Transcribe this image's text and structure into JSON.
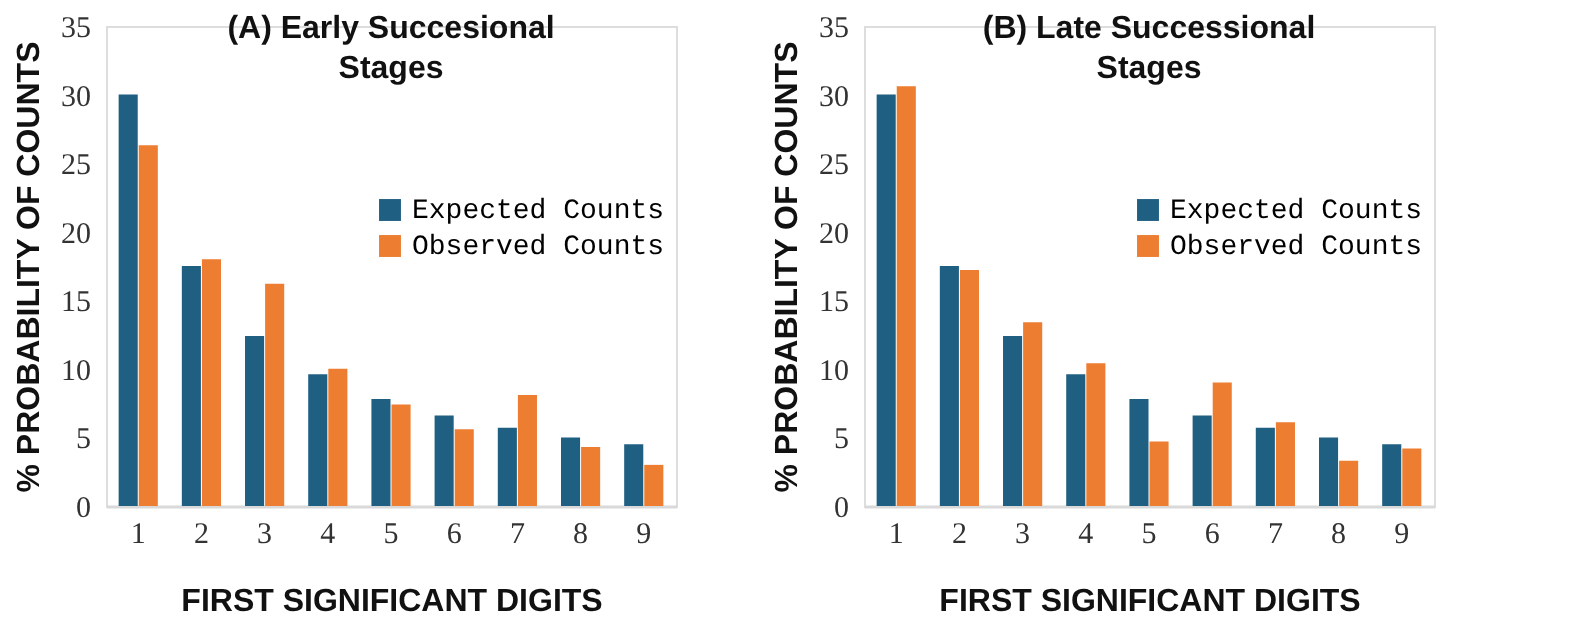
{
  "chart_data": [
    {
      "type": "bar",
      "title": "(A) Early Succesional Stages",
      "xlabel": "FIRST SIGNIFICANT DIGITS",
      "ylabel": "% PROBABILITY OF COUNTS",
      "categories": [
        "1",
        "2",
        "3",
        "4",
        "5",
        "6",
        "7",
        "8",
        "9"
      ],
      "series": [
        {
          "name": "Expected Counts",
          "color": "#1f5f82",
          "values": [
            30.0,
            17.5,
            12.4,
            9.6,
            7.8,
            6.6,
            5.7,
            5.0,
            4.5
          ]
        },
        {
          "name": "Observed Counts",
          "color": "#ed7d31",
          "values": [
            26.3,
            18.0,
            16.2,
            10.0,
            7.4,
            5.6,
            8.1,
            4.3,
            3.0
          ]
        }
      ],
      "ylim": [
        0,
        35
      ],
      "yticks": [
        0,
        5,
        10,
        15,
        20,
        25,
        30,
        35
      ],
      "grid": false,
      "legend": "right"
    },
    {
      "type": "bar",
      "title": "(B) Late Successional Stages",
      "xlabel": "FIRST SIGNIFICANT DIGITS",
      "ylabel": "% PROBABILITY OF COUNTS",
      "categories": [
        "1",
        "2",
        "3",
        "4",
        "5",
        "6",
        "7",
        "8",
        "9"
      ],
      "series": [
        {
          "name": "Expected Counts",
          "color": "#1f5f82",
          "values": [
            30.0,
            17.5,
            12.4,
            9.6,
            7.8,
            6.6,
            5.7,
            5.0,
            4.5
          ]
        },
        {
          "name": "Observed Counts",
          "color": "#ed7d31",
          "values": [
            30.6,
            17.2,
            13.4,
            10.4,
            4.7,
            9.0,
            6.1,
            3.3,
            4.2
          ]
        }
      ],
      "ylim": [
        0,
        35
      ],
      "yticks": [
        0,
        5,
        10,
        15,
        20,
        25,
        30,
        35
      ],
      "grid": false,
      "legend": "right"
    }
  ]
}
